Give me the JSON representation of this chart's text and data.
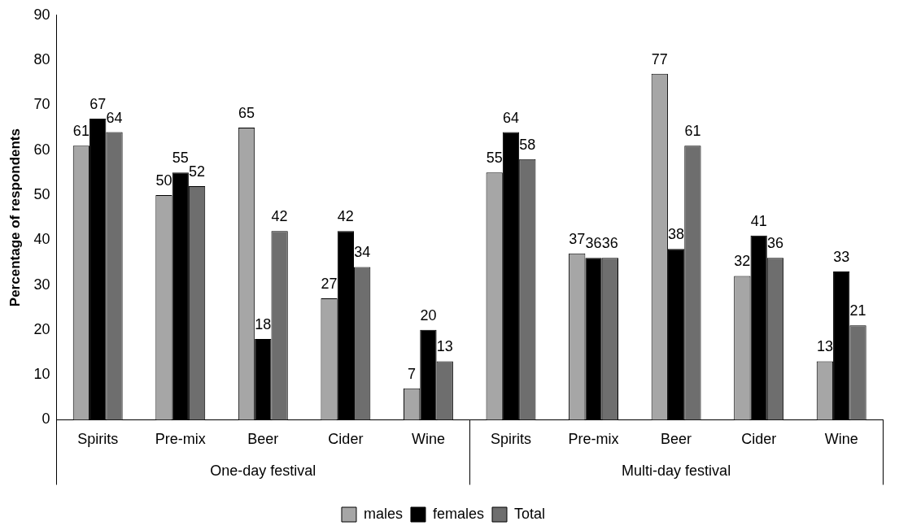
{
  "chart_data": {
    "type": "bar",
    "ylabel": "Percentage of respondents",
    "categories": [
      "Spirits",
      "Pre-mix",
      "Beer",
      "Cider",
      "Wine",
      "Spirits",
      "Pre-mix",
      "Beer",
      "Cider",
      "Wine"
    ],
    "series": [
      {
        "name": "males",
        "color": "#a6a6a6",
        "values": [
          61,
          50,
          65,
          27,
          7,
          55,
          37,
          77,
          32,
          13
        ]
      },
      {
        "name": "females",
        "color": "#000000",
        "values": [
          67,
          55,
          18,
          42,
          20,
          64,
          36,
          38,
          41,
          33
        ]
      },
      {
        "name": "Total",
        "color": "#6e6e6e",
        "values": [
          64,
          52,
          42,
          34,
          13,
          58,
          36,
          61,
          36,
          21
        ]
      }
    ],
    "annotations": [
      "One-day festival",
      "Multi-day festival"
    ],
    "ylim": [
      0,
      90
    ],
    "yticks": [
      0,
      10,
      20,
      30,
      40,
      50,
      60,
      70,
      80,
      90
    ],
    "grid": false,
    "legend": "bottom",
    "data_labels": true
  }
}
